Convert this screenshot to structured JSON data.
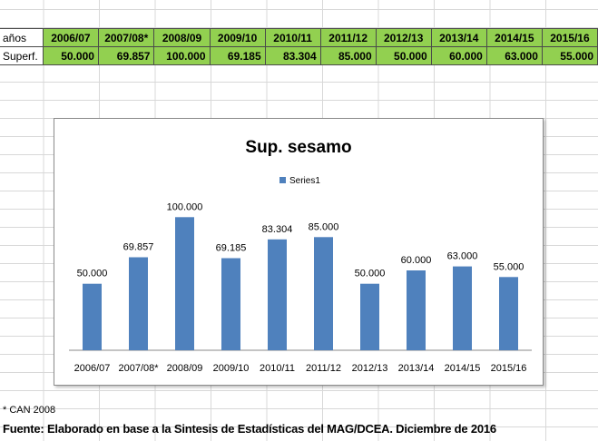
{
  "table": {
    "row1_label": "años",
    "row2_label": "Superf.",
    "years": [
      "2006/07",
      "2007/08*",
      "2008/09",
      "2009/10",
      "2010/11",
      "2011/12",
      "2012/13",
      "2013/14",
      "2014/15",
      "2015/16"
    ],
    "values": [
      "50.000",
      "69.857",
      "100.000",
      "69.185",
      "83.304",
      "85.000",
      "50.000",
      "60.000",
      "63.000",
      "55.000"
    ],
    "fill_color": "#92d050"
  },
  "chart_data": {
    "type": "bar",
    "title": "Sup. sesamo",
    "categories": [
      "2006/07",
      "2007/08*",
      "2008/09",
      "2009/10",
      "2010/11",
      "2011/12",
      "2012/13",
      "2013/14",
      "2014/15",
      "2015/16"
    ],
    "series": [
      {
        "name": "Series1",
        "values": [
          50000,
          69857,
          100000,
          69185,
          83304,
          85000,
          50000,
          60000,
          63000,
          55000
        ],
        "color": "#4f81bd"
      }
    ],
    "data_labels": [
      "50.000",
      "69.857",
      "100.000",
      "69.185",
      "83.304",
      "85.000",
      "50.000",
      "60.000",
      "63.000",
      "55.000"
    ],
    "ylim": [
      0,
      120000
    ],
    "grid": false,
    "legend_position": "top"
  },
  "footnote": "* CAN 2008",
  "source": "Fuente: Elaborado en base a la Sintesis de  Estadísticas del MAG/DCEA.  Diciembre de 2016"
}
